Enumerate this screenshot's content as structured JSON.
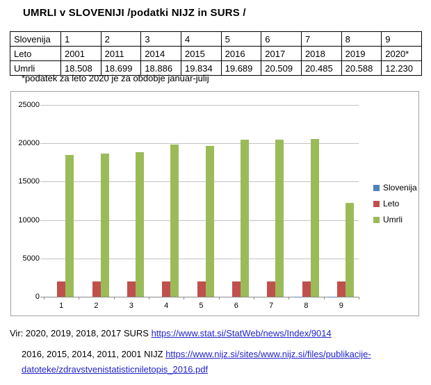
{
  "page": {
    "title": "UMRLI v SLOVENIJI /podatki NIJZ in SURS /",
    "footnote": "*podatek za leto 2020 je za obdobje januar-julij"
  },
  "table": {
    "rows": [
      {
        "header": "Slovenija",
        "cells": [
          "1",
          "2",
          "3",
          "4",
          "5",
          "6",
          "7",
          "8",
          "9"
        ]
      },
      {
        "header": "Leto",
        "cells": [
          "2001",
          "2011",
          "2014",
          "2015",
          "2016",
          "2017",
          "2018",
          "2019",
          "2020*"
        ]
      },
      {
        "header": "Umrli",
        "cells": [
          "18.508",
          "18.699",
          "18.886",
          "19.834",
          "19.689",
          "20.509",
          "20.485",
          "20.588",
          "12.230"
        ]
      }
    ]
  },
  "chart_data": {
    "type": "bar",
    "categories": [
      "1",
      "2",
      "3",
      "4",
      "5",
      "6",
      "7",
      "8",
      "9"
    ],
    "series": [
      {
        "name": "Slovenija",
        "color": "#4F81BD",
        "values": [
          1,
          2,
          3,
          4,
          5,
          6,
          7,
          8,
          9
        ]
      },
      {
        "name": "Leto",
        "color": "#C0504D",
        "values": [
          2001,
          2011,
          2014,
          2015,
          2016,
          2017,
          2018,
          2019,
          2020
        ]
      },
      {
        "name": "Umrli",
        "color": "#9BBB59",
        "values": [
          18508,
          18699,
          18886,
          19834,
          19689,
          20509,
          20485,
          20588,
          12230
        ]
      }
    ],
    "title": "",
    "xlabel": "",
    "ylabel": "",
    "ylim": [
      0,
      25000
    ],
    "ytick_interval": 5000,
    "ytick_labels": [
      "0",
      "5000",
      "10000",
      "15000",
      "20000",
      "25000"
    ],
    "grid": true,
    "legend_position": "right",
    "legend_entries": [
      "Slovenija",
      "Leto",
      "Umrli"
    ]
  },
  "footer": {
    "line1_text": "Vir: 2020, 2019, 2018, 2017 SURS ",
    "line1_link": "https://www.stat.si/StatWeb/news/Index/9014",
    "line2_text": "2016, 2015, 2014, 2011, 2001 NIJZ ",
    "line2_link": "https://www.nijz.si/sites/www.nijz.si/files/publikacije-",
    "line3_link": "datoteke/zdravstvenistatisticniletopis_2016.pdf"
  },
  "colors": {
    "link": "#2222CC",
    "series_slovenija": "#4F81BD",
    "series_leto": "#C0504D",
    "series_umrli": "#9BBB59",
    "gridline": "#C2C2C2",
    "axis": "#8A8A8A",
    "chart_border": "#A3A3A3"
  }
}
